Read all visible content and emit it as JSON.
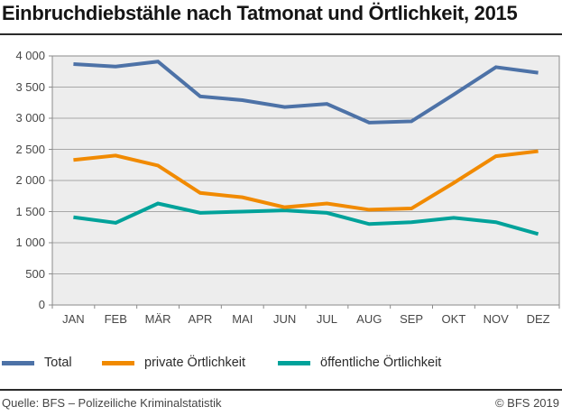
{
  "header": {
    "title": "Einbruchdiebstähle nach Tatmonat und Örtlichkeit, 2015"
  },
  "chart_data": {
    "type": "line",
    "title": "Einbruchdiebstähle nach Tatmonat und Örtlichkeit, 2015",
    "categories": [
      "JAN",
      "FEB",
      "MÄR",
      "APR",
      "MAI",
      "JUN",
      "JUL",
      "AUG",
      "SEP",
      "OKT",
      "NOV",
      "DEZ"
    ],
    "series": [
      {
        "name": "Total",
        "color": "#4d72a7",
        "values": [
          3870,
          3830,
          3910,
          3350,
          3290,
          3180,
          3230,
          2930,
          2950,
          3380,
          3820,
          3730
        ]
      },
      {
        "name": "private Örtlichkeit",
        "color": "#f18a00",
        "values": [
          2330,
          2400,
          2240,
          1800,
          1730,
          1570,
          1630,
          1530,
          1550,
          1960,
          2390,
          2470
        ]
      },
      {
        "name": "öffentliche Örtlichkeit",
        "color": "#00a29a",
        "values": [
          1410,
          1320,
          1630,
          1480,
          1500,
          1520,
          1480,
          1300,
          1330,
          1400,
          1330,
          1140
        ]
      }
    ],
    "ylim": [
      0,
      4000
    ],
    "yticks": {
      "values": [
        4000,
        3500,
        3000,
        2500,
        2000,
        1500,
        1000,
        500,
        0
      ],
      "labels": [
        "4 000",
        "3 500",
        "3 000",
        "2 500",
        "2 000",
        "1 500",
        "1 000",
        "500",
        "0"
      ]
    },
    "xlabel": "",
    "ylabel": "",
    "grid": true,
    "legend_position": "bottom",
    "plot_bg": "#ededed",
    "gridline_color": "#a8a8a8",
    "border_color": "#8a8a8a",
    "label_color": "#474747"
  },
  "footer": {
    "source": "Quelle: BFS – Polizeiliche Kriminalstatistik",
    "copyright": "© BFS 2019"
  }
}
